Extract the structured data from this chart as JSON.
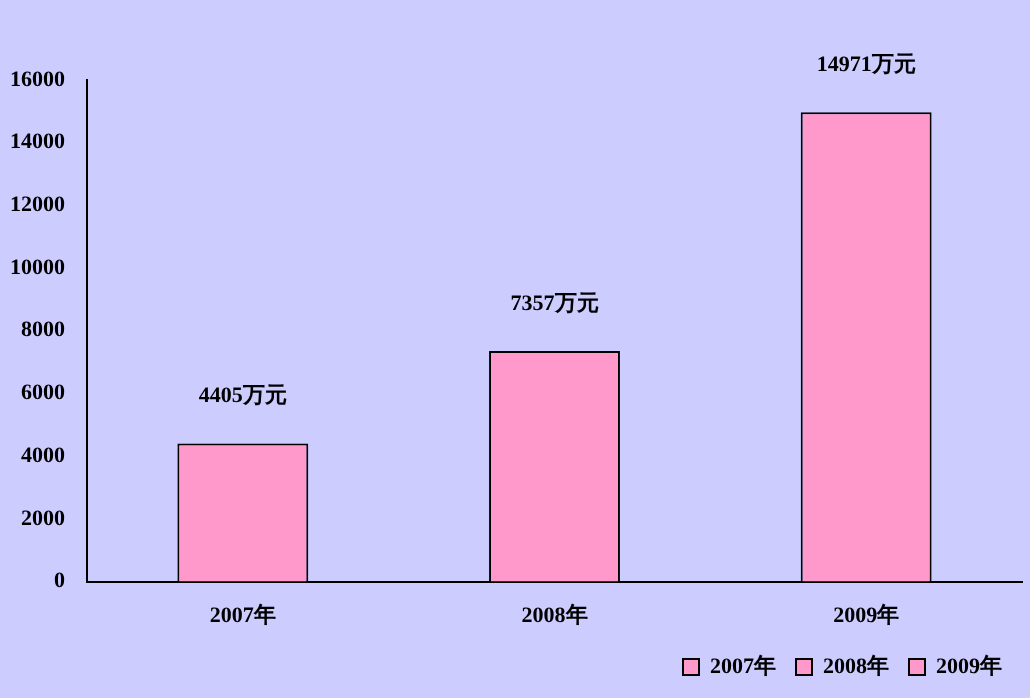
{
  "chart_data": {
    "type": "bar",
    "categories": [
      "2007年",
      "2008年",
      "2009年"
    ],
    "series": [
      {
        "name": "2007年",
        "color": "#ff99cc",
        "values": [
          4405,
          null,
          null
        ],
        "value_labels": [
          "4405万元",
          null,
          null
        ]
      },
      {
        "name": "2008年",
        "color": "#ff99cc",
        "values": [
          null,
          7357,
          null
        ],
        "value_labels": [
          null,
          "7357万元",
          null
        ]
      },
      {
        "name": "2009年",
        "color": "#ff99cc",
        "values": [
          null,
          null,
          14971
        ],
        "value_labels": [
          null,
          null,
          "14971万元"
        ]
      }
    ],
    "stacked": true,
    "ylim": [
      0,
      16000
    ],
    "yticks": [
      0,
      2000,
      4000,
      6000,
      8000,
      10000,
      12000,
      14000,
      16000
    ],
    "grid": false,
    "legend": "bottom right"
  }
}
